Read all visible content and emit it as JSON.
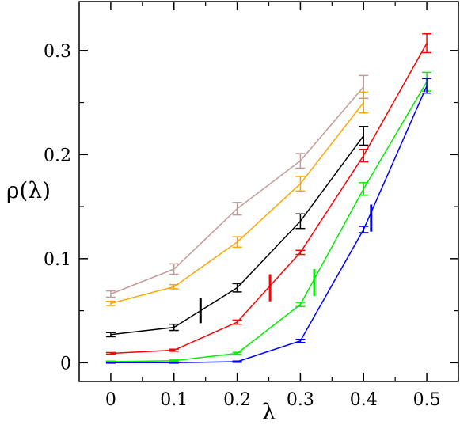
{
  "chart_data": {
    "type": "line",
    "title": "",
    "xlabel": "λ",
    "ylabel": "ρ(λ)",
    "xlim": [
      -0.05,
      0.55
    ],
    "ylim": [
      -0.018,
      0.347
    ],
    "xticks": [
      0,
      0.1,
      0.2,
      0.3,
      0.4,
      0.5
    ],
    "xtick_labels": [
      "0",
      "0.1",
      "0.2",
      "0.3",
      "0.4",
      "0.5"
    ],
    "yticks": [
      0,
      0.1,
      0.2,
      0.3
    ],
    "ytick_labels": [
      "0",
      "0.1",
      "0.2",
      "0.3"
    ],
    "grid": false,
    "legend": "none",
    "series": [
      {
        "color": "#c49a9a",
        "x": [
          0,
          0.1,
          0.2,
          0.3,
          0.4
        ],
        "y": [
          0.066,
          0.09,
          0.148,
          0.194,
          0.265
        ],
        "err": [
          0.003,
          0.005,
          0.006,
          0.007,
          0.011
        ]
      },
      {
        "color": "#ffa500",
        "x": [
          0,
          0.1,
          0.2,
          0.3,
          0.4
        ],
        "y": [
          0.057,
          0.073,
          0.116,
          0.172,
          0.25
        ],
        "err": [
          0.002,
          0.002,
          0.005,
          0.007,
          0.01
        ]
      },
      {
        "color": "#000000",
        "x": [
          0,
          0.1,
          0.2,
          0.3,
          0.4
        ],
        "y": [
          0.027,
          0.034,
          0.072,
          0.136,
          0.218
        ],
        "err": [
          0.002,
          0.003,
          0.004,
          0.007,
          0.009
        ]
      },
      {
        "color": "#ff0000",
        "x": [
          0,
          0.1,
          0.2,
          0.3,
          0.4,
          0.5
        ],
        "y": [
          0.009,
          0.012,
          0.039,
          0.106,
          0.199,
          0.307
        ],
        "err": [
          0.0008,
          0.001,
          0.002,
          0.002,
          0.006,
          0.009
        ]
      },
      {
        "color": "#00ee00",
        "x": [
          0,
          0.1,
          0.2,
          0.3,
          0.4,
          0.5
        ],
        "y": [
          0.001,
          0.002,
          0.009,
          0.056,
          0.167,
          0.27
        ],
        "err": [
          0.0006,
          0.0006,
          0.001,
          0.002,
          0.006,
          0.009
        ]
      },
      {
        "color": "#0000ff",
        "x": [
          0,
          0.1,
          0.2,
          0.3,
          0.4,
          0.5
        ],
        "y": [
          0.0,
          0.0,
          0.001,
          0.021,
          0.128,
          0.266
        ],
        "err": [
          0.0004,
          0.0004,
          0.0006,
          0.0015,
          0.003,
          0.007
        ]
      }
    ],
    "annotations": [
      {
        "type": "vertical-marker",
        "color": "#000000",
        "x": 0.142,
        "y_range": [
          0.038,
          0.062
        ]
      },
      {
        "type": "vertical-marker",
        "color": "#ff0000",
        "x": 0.252,
        "y_range": [
          0.059,
          0.085
        ]
      },
      {
        "type": "vertical-marker",
        "color": "#00ee00",
        "x": 0.322,
        "y_range": [
          0.064,
          0.09
        ]
      },
      {
        "type": "vertical-marker",
        "color": "#0000ff",
        "x": 0.412,
        "y_range": [
          0.126,
          0.152
        ]
      }
    ]
  }
}
